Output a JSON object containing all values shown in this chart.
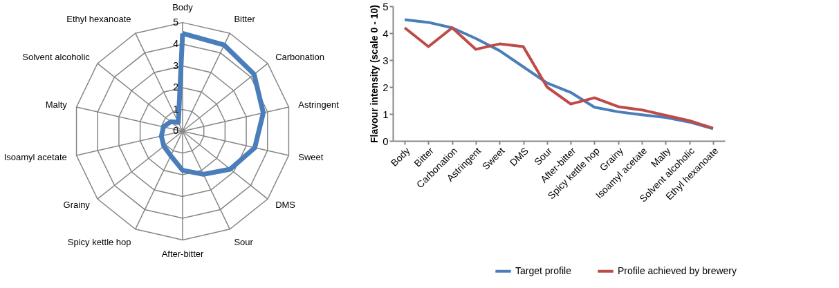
{
  "chart_data": [
    {
      "type": "radar",
      "categories": [
        "Body",
        "Bitter",
        "Carbonation",
        "Astringent",
        "Sweet",
        "DMS",
        "Sour",
        "After-bitter",
        "Spicy kettle hop",
        "Grainy",
        "Isoamyl acetate",
        "Malty",
        "Solvent alcoholic",
        "Ethyl hexanoate"
      ],
      "series": [
        {
          "color": "#4a7ebb",
          "values": [
            4.5,
            4.4,
            4.2,
            3.8,
            3.4,
            2.8,
            2.2,
            1.8,
            1.25,
            1.1,
            1.0,
            0.9,
            0.7,
            0.45
          ]
        }
      ],
      "ylim": [
        0,
        5
      ],
      "yticks": [
        0,
        1,
        2,
        3,
        4,
        5
      ],
      "grid": true
    },
    {
      "type": "line",
      "categories": [
        "Body",
        "Bitter",
        "Carbonation",
        "Astringent",
        "Sweet",
        "DMS",
        "Sour",
        "After-bitter",
        "Spicy kettle hop",
        "Grainy",
        "Isoamyl acetate",
        "Malty",
        "Solvent alcoholic",
        "Ethyl hexanoate"
      ],
      "ylabel": "Flavour intensity (scale 0 - 10)",
      "series": [
        {
          "name": "Target profile",
          "color": "#4a7ebb",
          "values": [
            4.5,
            4.4,
            4.2,
            3.8,
            3.35,
            2.75,
            2.15,
            1.8,
            1.25,
            1.08,
            0.97,
            0.87,
            0.7,
            0.45
          ]
        },
        {
          "name": "Profile achieved by brewery",
          "color": "#be4b48",
          "values": [
            4.2,
            3.5,
            4.2,
            3.4,
            3.6,
            3.5,
            2.0,
            1.37,
            1.6,
            1.27,
            1.15,
            0.95,
            0.75,
            0.47
          ]
        }
      ],
      "ylim": [
        0,
        5
      ],
      "yticks": [
        0,
        1,
        2,
        3,
        4,
        5
      ],
      "legend": "bottom"
    }
  ]
}
